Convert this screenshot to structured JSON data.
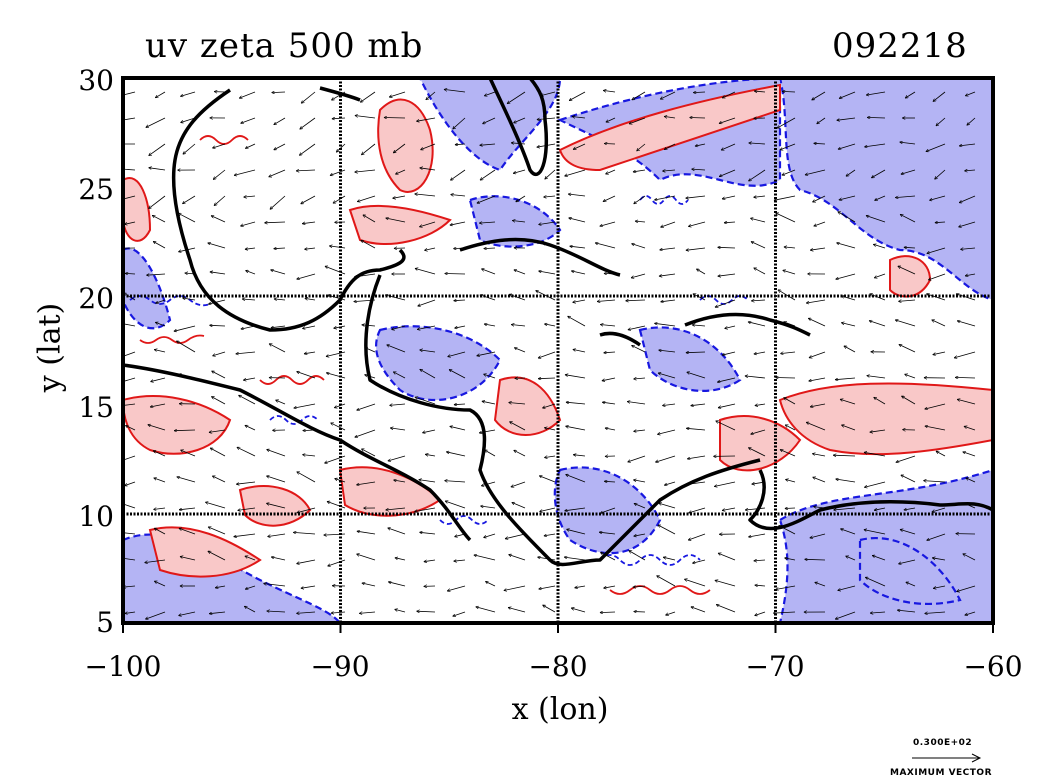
{
  "title": {
    "variable": "uv zeta 500 mb",
    "timestamp": "092218"
  },
  "axes": {
    "x_label": "x (lon)",
    "y_label": "y (lat)",
    "x_ticks": [
      "−100",
      "−90",
      "−80",
      "−70",
      "−60"
    ],
    "y_ticks": [
      "30",
      "25",
      "20",
      "15",
      "10",
      "5"
    ],
    "x_range": [
      -100,
      -60
    ],
    "y_range": [
      5,
      30
    ]
  },
  "legend": {
    "reference_value": "0.300E+02",
    "reference_label": "MAXIMUM VECTOR"
  },
  "colors": {
    "positive_fill": "#f9c8c8",
    "positive_line": "#e01818",
    "negative_fill": "#b4b4f4",
    "negative_line": "#1818e0",
    "coastline": "#000000"
  },
  "layers": [
    "coastline",
    "vorticity-positive",
    "vorticity-negative",
    "wind-vectors",
    "grid-lines"
  ]
}
